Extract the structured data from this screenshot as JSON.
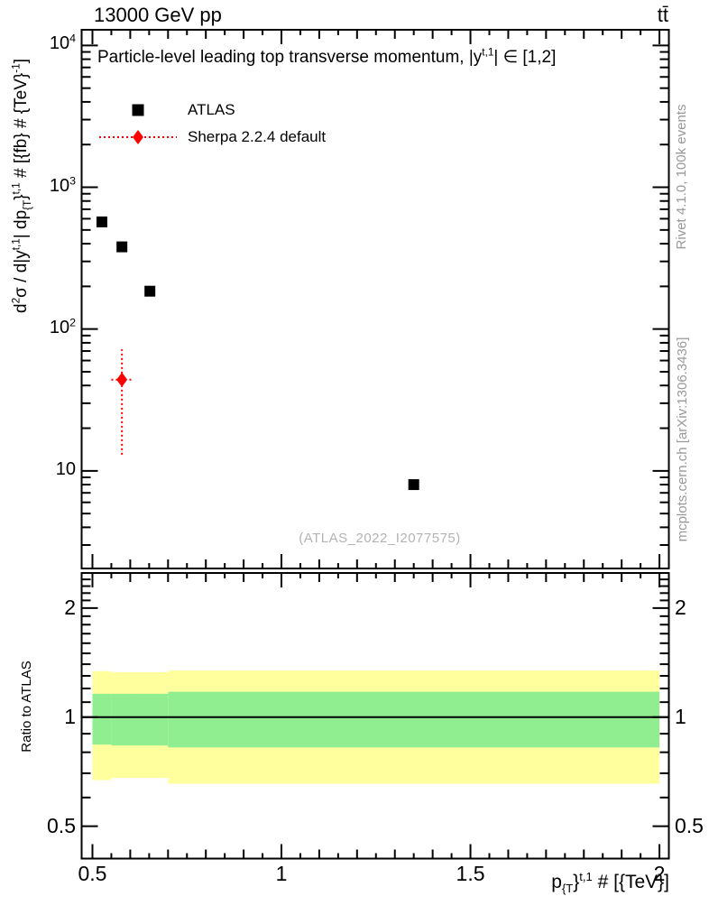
{
  "header": {
    "left_title": "13000 GeV pp",
    "right_title": "tt̄"
  },
  "main_panel": {
    "title_segments": [
      {
        "t": "Particle-level leading top transverse momentum, |y"
      },
      {
        "t": "t,1",
        "s": "sup"
      },
      {
        "t": "| ∈ [1,2]"
      }
    ],
    "y_axis_title_segments": [
      {
        "t": "d"
      },
      {
        "t": "2",
        "s": "sup"
      },
      {
        "t": "σ / d|y"
      },
      {
        "t": "t,1",
        "s": "sup"
      },
      {
        "t": "| dp"
      },
      {
        "t": "{T",
        "s": "sub"
      },
      {
        "t": "}"
      },
      {
        "t": "t,1",
        "s": "sup"
      },
      {
        "t": " # [{fb} # {TeV}"
      },
      {
        "t": "-1",
        "s": "sup"
      },
      {
        "t": "]"
      }
    ],
    "legend": [
      {
        "label": "ATLAS",
        "marker": "black-filled-square"
      },
      {
        "label": "Sherpa 2.2.4 default",
        "marker": "red-diamond-dotted-line"
      }
    ],
    "watermark": "(ATLAS_2022_I2077575)"
  },
  "ratio_panel": {
    "y_axis_label": "Ratio to ATLAS"
  },
  "x_axis_title_segments": [
    {
      "t": "p"
    },
    {
      "t": "{T",
      "s": "sub"
    },
    {
      "t": "}"
    },
    {
      "t": "t,1",
      "s": "sup"
    },
    {
      "t": " # [{TeV}]"
    }
  ],
  "side_notes": {
    "top_right": "Rivet 4.1.0,  100k events",
    "bottom_right": "mcplots.cern.ch [arXiv:1306.3436]"
  },
  "colors": {
    "atlas": "#000000",
    "sherpa": "#ff0000",
    "band_outer": "#ffff9e",
    "band_inner": "#90ee90",
    "frame": "#000000",
    "side_text": "#999999",
    "watermark_text": "#b3b3b3"
  },
  "chart_data": [
    {
      "id": "main-spectrum",
      "type": "scatter",
      "title": "Particle-level leading top transverse momentum, |y^{t,1}| in [1,2]",
      "xlabel": "p_{T}^{t,1} [TeV]",
      "ylabel": "d^2(sigma) / d|y^{t,1}| dp_{T}^{t,1} [fb/TeV]",
      "x_range": [
        0.4714,
        2.0249
      ],
      "y_range_log": [
        2.05,
        12900
      ],
      "x_major_ticks": [
        0.5,
        1,
        1.5,
        2
      ],
      "x_minor_step": 0.05,
      "y_decade_exponents": [
        4,
        3,
        2,
        1
      ],
      "grid": false,
      "legend_position": "top-left",
      "series": [
        {
          "name": "ATLAS",
          "marker": "filled-square",
          "color": "#000000",
          "points": [
            {
              "x": 0.525,
              "y": 570
            },
            {
              "x": 0.578,
              "y": 380
            },
            {
              "x": 0.652,
              "y": 185
            },
            {
              "x": 1.35,
              "y": 8
            }
          ]
        },
        {
          "name": "Sherpa 2.2.4 default",
          "marker": "filled-diamond",
          "color": "#ff0000",
          "errorbar_style": "dotted",
          "points": [
            {
              "x": 0.578,
              "y": 44,
              "y_lo": 13,
              "y_hi": 72,
              "x_lo": 0.55,
              "x_hi": 0.605
            }
          ]
        }
      ]
    },
    {
      "id": "ratio",
      "type": "band",
      "ylabel": "Ratio to ATLAS",
      "y_range_log": [
        0.407,
        2.5
      ],
      "y_labeled_ticks": [
        2,
        1,
        0.5
      ],
      "reference_line_y": 1,
      "bin_edges": [
        0.5,
        0.55,
        0.605,
        0.7,
        2.0
      ],
      "bands": {
        "yellow": [
          [
            0.67,
            1.34
          ],
          [
            0.68,
            1.33
          ],
          [
            0.68,
            1.33
          ],
          [
            0.655,
            1.345
          ]
        ],
        "green": [
          [
            0.84,
            1.16
          ],
          [
            0.835,
            1.16
          ],
          [
            0.835,
            1.16
          ],
          [
            0.825,
            1.175
          ]
        ]
      }
    }
  ]
}
